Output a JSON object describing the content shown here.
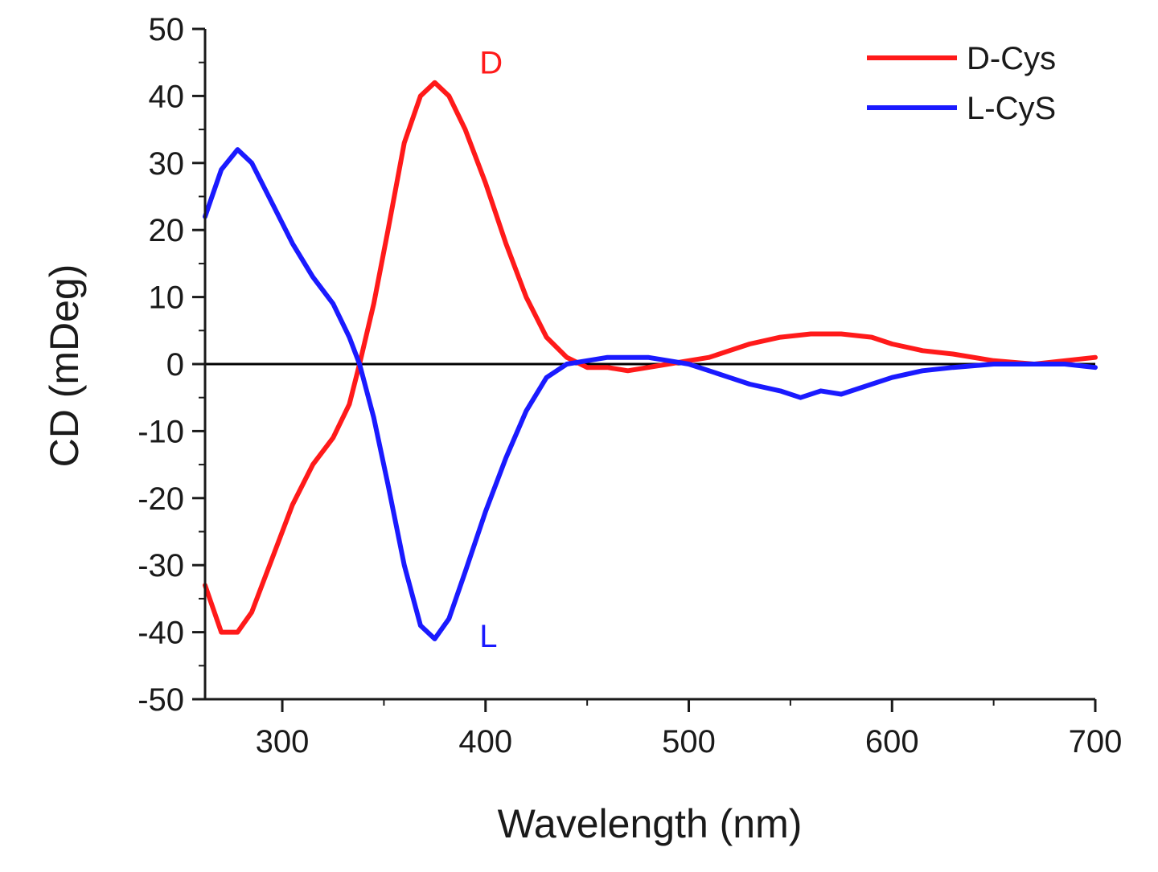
{
  "chart_data": {
    "type": "line",
    "title": "",
    "xlabel": "Wavelength (nm)",
    "ylabel": "CD (mDeg)",
    "xlim": [
      262,
      700
    ],
    "ylim": [
      -50,
      50
    ],
    "x_ticks": [
      300,
      400,
      500,
      600,
      700
    ],
    "y_ticks": [
      50,
      40,
      30,
      20,
      10,
      0,
      -10,
      -20,
      -30,
      -40,
      -50
    ],
    "grid": false,
    "zero_line": true,
    "legend_position": "top-right",
    "series": [
      {
        "name": "D-Cys",
        "color": "#ff1a1a",
        "points": [
          [
            262,
            -33
          ],
          [
            270,
            -40
          ],
          [
            278,
            -40
          ],
          [
            285,
            -37
          ],
          [
            295,
            -29
          ],
          [
            305,
            -21
          ],
          [
            315,
            -15
          ],
          [
            325,
            -11
          ],
          [
            333,
            -6
          ],
          [
            338,
            0
          ],
          [
            345,
            9
          ],
          [
            352,
            20
          ],
          [
            360,
            33
          ],
          [
            368,
            40
          ],
          [
            375,
            42
          ],
          [
            382,
            40
          ],
          [
            390,
            35
          ],
          [
            400,
            27
          ],
          [
            410,
            18
          ],
          [
            420,
            10
          ],
          [
            430,
            4
          ],
          [
            440,
            1
          ],
          [
            450,
            -0.5
          ],
          [
            460,
            -0.5
          ],
          [
            470,
            -1
          ],
          [
            480,
            -0.5
          ],
          [
            490,
            0
          ],
          [
            500,
            0.5
          ],
          [
            510,
            1
          ],
          [
            520,
            2
          ],
          [
            530,
            3
          ],
          [
            545,
            4
          ],
          [
            560,
            4.5
          ],
          [
            575,
            4.5
          ],
          [
            590,
            4
          ],
          [
            600,
            3
          ],
          [
            615,
            2
          ],
          [
            630,
            1.5
          ],
          [
            650,
            0.5
          ],
          [
            670,
            0
          ],
          [
            685,
            0.5
          ],
          [
            700,
            1
          ]
        ]
      },
      {
        "name": "L-CyS",
        "color": "#1a1aff",
        "points": [
          [
            262,
            22
          ],
          [
            270,
            29
          ],
          [
            278,
            32
          ],
          [
            285,
            30
          ],
          [
            295,
            24
          ],
          [
            305,
            18
          ],
          [
            315,
            13
          ],
          [
            325,
            9
          ],
          [
            333,
            4
          ],
          [
            338,
            0
          ],
          [
            345,
            -8
          ],
          [
            352,
            -18
          ],
          [
            360,
            -30
          ],
          [
            368,
            -39
          ],
          [
            375,
            -41
          ],
          [
            382,
            -38
          ],
          [
            390,
            -31
          ],
          [
            400,
            -22
          ],
          [
            410,
            -14
          ],
          [
            420,
            -7
          ],
          [
            430,
            -2
          ],
          [
            440,
            0
          ],
          [
            450,
            0.5
          ],
          [
            460,
            1
          ],
          [
            470,
            1
          ],
          [
            480,
            1
          ],
          [
            490,
            0.5
          ],
          [
            500,
            0
          ],
          [
            510,
            -1
          ],
          [
            520,
            -2
          ],
          [
            530,
            -3
          ],
          [
            545,
            -4
          ],
          [
            555,
            -5
          ],
          [
            565,
            -4
          ],
          [
            575,
            -4.5
          ],
          [
            590,
            -3
          ],
          [
            600,
            -2
          ],
          [
            615,
            -1
          ],
          [
            630,
            -0.5
          ],
          [
            650,
            0
          ],
          [
            670,
            0
          ],
          [
            685,
            0
          ],
          [
            700,
            -0.5
          ]
        ]
      }
    ],
    "annotations": [
      {
        "text": "D",
        "x": 397,
        "y": 45,
        "color": "#ff1a1a"
      },
      {
        "text": "L",
        "x": 397,
        "y": -40.5,
        "color": "#1a1aff"
      }
    ]
  }
}
